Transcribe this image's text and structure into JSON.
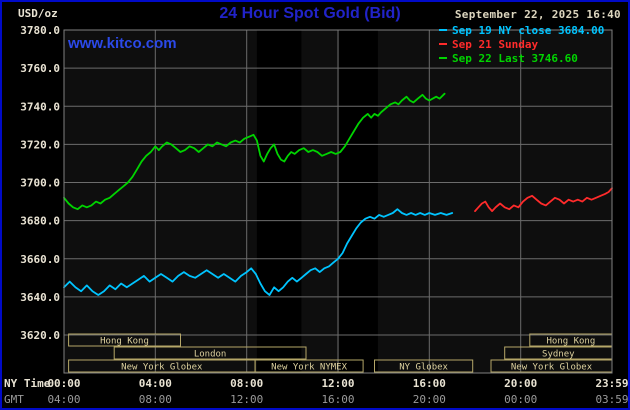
{
  "header": {
    "unit_label": "USD/oz",
    "title": "24 Hour Spot Gold (Bid)",
    "datetime": "September 22, 2025 16:40",
    "watermark": "www.kitco.com"
  },
  "legend": [
    {
      "label": "Sep 19 NY close 3684.00",
      "color": "#00c4ff"
    },
    {
      "label": "Sep 21 Sunday",
      "color": "#ff2b2b"
    },
    {
      "label": "Sep 22 Last 3746.60",
      "color": "#00d400"
    }
  ],
  "axes": {
    "x_label_left_top": "NY Time",
    "x_label_left_bottom": "GMT",
    "y_ticks": [
      "3780.0",
      "3760.0",
      "3740.0",
      "3720.0",
      "3700.0",
      "3680.0",
      "3660.0",
      "3640.0",
      "3620.0"
    ],
    "x_ticks_ny": [
      "00:00",
      "04:00",
      "08:00",
      "12:00",
      "16:00",
      "20:00",
      "23:59"
    ],
    "x_ticks_gmt": [
      "04:00",
      "08:00",
      "12:00",
      "16:00",
      "20:00",
      "00:00",
      "03:59"
    ],
    "x_tick_hours": [
      0,
      4,
      8,
      12,
      16,
      20,
      24
    ]
  },
  "sessions": [
    {
      "row": 1,
      "label": "Hong Kong",
      "start": 0.2,
      "end": 5.1
    },
    {
      "row": 1,
      "label": "Hong Kong",
      "start": 20.4,
      "end": 24
    },
    {
      "row": 2,
      "label": "London",
      "start": 2.2,
      "end": 10.6
    },
    {
      "row": 2,
      "label": "Sydney",
      "start": 19.3,
      "end": 24
    },
    {
      "row": 3,
      "label": "New York Globex",
      "start": 0.2,
      "end": 8.37
    },
    {
      "row": 3,
      "label": "New York NYMEX",
      "start": 8.37,
      "end": 13.1
    },
    {
      "row": 3,
      "label": "NY Globex",
      "start": 13.6,
      "end": 17.9
    },
    {
      "row": 3,
      "label": "New York Globex",
      "start": 18.7,
      "end": 24
    }
  ],
  "chart_data": {
    "type": "line",
    "title": "24 Hour Spot Gold (Bid)",
    "xlabel": "NY Time",
    "ylabel": "USD/oz",
    "ylim": [
      3620,
      3780
    ],
    "xlim_hours": [
      0,
      24
    ],
    "grid": true,
    "legend_position": "top-right",
    "shaded_bands_hours": [
      [
        8.45,
        10.4
      ],
      [
        12.05,
        13.75
      ]
    ],
    "series": [
      {
        "key": "sep19-ny-close",
        "name": "Sep 19 NY close 3684.00",
        "color": "#00c4ff",
        "points": [
          [
            0,
            3645
          ],
          [
            0.25,
            3648
          ],
          [
            0.5,
            3645
          ],
          [
            0.75,
            3643
          ],
          [
            1,
            3646
          ],
          [
            1.25,
            3643
          ],
          [
            1.5,
            3641
          ],
          [
            1.75,
            3643
          ],
          [
            2,
            3646
          ],
          [
            2.25,
            3644
          ],
          [
            2.5,
            3647
          ],
          [
            2.75,
            3645
          ],
          [
            3,
            3647
          ],
          [
            3.25,
            3649
          ],
          [
            3.5,
            3651
          ],
          [
            3.75,
            3648
          ],
          [
            4,
            3650
          ],
          [
            4.25,
            3652
          ],
          [
            4.5,
            3650
          ],
          [
            4.75,
            3648
          ],
          [
            5,
            3651
          ],
          [
            5.25,
            3653
          ],
          [
            5.5,
            3651
          ],
          [
            5.75,
            3650
          ],
          [
            6,
            3652
          ],
          [
            6.25,
            3654
          ],
          [
            6.5,
            3652
          ],
          [
            6.75,
            3650
          ],
          [
            7,
            3652
          ],
          [
            7.25,
            3650
          ],
          [
            7.5,
            3648
          ],
          [
            7.75,
            3651
          ],
          [
            8,
            3653
          ],
          [
            8.2,
            3655
          ],
          [
            8.4,
            3652
          ],
          [
            8.6,
            3647
          ],
          [
            8.8,
            3643
          ],
          [
            9,
            3641
          ],
          [
            9.2,
            3645
          ],
          [
            9.4,
            3643
          ],
          [
            9.6,
            3645
          ],
          [
            9.8,
            3648
          ],
          [
            10,
            3650
          ],
          [
            10.2,
            3648
          ],
          [
            10.4,
            3650
          ],
          [
            10.6,
            3652
          ],
          [
            10.8,
            3654
          ],
          [
            11,
            3655
          ],
          [
            11.2,
            3653
          ],
          [
            11.4,
            3655
          ],
          [
            11.6,
            3656
          ],
          [
            11.8,
            3658
          ],
          [
            12,
            3660
          ],
          [
            12.2,
            3663
          ],
          [
            12.4,
            3668
          ],
          [
            12.6,
            3672
          ],
          [
            12.8,
            3676
          ],
          [
            13,
            3679
          ],
          [
            13.2,
            3681
          ],
          [
            13.4,
            3682
          ],
          [
            13.6,
            3681
          ],
          [
            13.8,
            3683
          ],
          [
            14,
            3682
          ],
          [
            14.2,
            3683
          ],
          [
            14.4,
            3684
          ],
          [
            14.6,
            3686
          ],
          [
            14.8,
            3684
          ],
          [
            15,
            3683
          ],
          [
            15.2,
            3684
          ],
          [
            15.4,
            3683
          ],
          [
            15.6,
            3684
          ],
          [
            15.8,
            3683
          ],
          [
            16,
            3684
          ],
          [
            16.25,
            3683
          ],
          [
            16.5,
            3684
          ],
          [
            16.75,
            3683
          ],
          [
            17,
            3684
          ]
        ]
      },
      {
        "key": "sep21-sunday",
        "name": "Sep 21 Sunday",
        "color": "#ff2b2b",
        "points": [
          [
            18,
            3685
          ],
          [
            18.15,
            3687
          ],
          [
            18.3,
            3689
          ],
          [
            18.45,
            3690
          ],
          [
            18.6,
            3687
          ],
          [
            18.75,
            3685
          ],
          [
            18.9,
            3687
          ],
          [
            19.1,
            3689
          ],
          [
            19.3,
            3687
          ],
          [
            19.5,
            3686
          ],
          [
            19.7,
            3688
          ],
          [
            19.9,
            3687
          ],
          [
            20.1,
            3690
          ],
          [
            20.3,
            3692
          ],
          [
            20.5,
            3693
          ],
          [
            20.7,
            3691
          ],
          [
            20.9,
            3689
          ],
          [
            21.1,
            3688
          ],
          [
            21.3,
            3690
          ],
          [
            21.5,
            3692
          ],
          [
            21.7,
            3691
          ],
          [
            21.9,
            3689
          ],
          [
            22.1,
            3691
          ],
          [
            22.3,
            3690
          ],
          [
            22.5,
            3691
          ],
          [
            22.7,
            3690
          ],
          [
            22.9,
            3692
          ],
          [
            23.1,
            3691
          ],
          [
            23.3,
            3692
          ],
          [
            23.5,
            3693
          ],
          [
            23.7,
            3694
          ],
          [
            23.85,
            3695
          ],
          [
            24,
            3697
          ]
        ]
      },
      {
        "key": "sep22-last",
        "name": "Sep 22 Last 3746.60",
        "color": "#00d400",
        "points": [
          [
            0,
            3692
          ],
          [
            0.2,
            3689
          ],
          [
            0.4,
            3687
          ],
          [
            0.6,
            3686
          ],
          [
            0.8,
            3688
          ],
          [
            1,
            3687
          ],
          [
            1.2,
            3688
          ],
          [
            1.4,
            3690
          ],
          [
            1.6,
            3689
          ],
          [
            1.8,
            3691
          ],
          [
            2,
            3692
          ],
          [
            2.2,
            3694
          ],
          [
            2.4,
            3696
          ],
          [
            2.6,
            3698
          ],
          [
            2.8,
            3700
          ],
          [
            3,
            3703
          ],
          [
            3.2,
            3707
          ],
          [
            3.4,
            3711
          ],
          [
            3.6,
            3714
          ],
          [
            3.8,
            3716
          ],
          [
            4,
            3719
          ],
          [
            4.15,
            3717
          ],
          [
            4.3,
            3719
          ],
          [
            4.5,
            3721
          ],
          [
            4.7,
            3720
          ],
          [
            4.9,
            3718
          ],
          [
            5.1,
            3716
          ],
          [
            5.3,
            3717
          ],
          [
            5.5,
            3719
          ],
          [
            5.7,
            3718
          ],
          [
            5.9,
            3716
          ],
          [
            6.1,
            3718
          ],
          [
            6.3,
            3720
          ],
          [
            6.5,
            3719
          ],
          [
            6.7,
            3721
          ],
          [
            6.9,
            3720
          ],
          [
            7.1,
            3719
          ],
          [
            7.3,
            3721
          ],
          [
            7.5,
            3722
          ],
          [
            7.7,
            3721
          ],
          [
            7.9,
            3723
          ],
          [
            8.1,
            3724
          ],
          [
            8.3,
            3725
          ],
          [
            8.45,
            3722
          ],
          [
            8.6,
            3714
          ],
          [
            8.75,
            3711
          ],
          [
            8.9,
            3715
          ],
          [
            9.05,
            3718
          ],
          [
            9.2,
            3720
          ],
          [
            9.35,
            3715
          ],
          [
            9.5,
            3712
          ],
          [
            9.65,
            3711
          ],
          [
            9.8,
            3714
          ],
          [
            9.95,
            3716
          ],
          [
            10.1,
            3715
          ],
          [
            10.3,
            3717
          ],
          [
            10.5,
            3718
          ],
          [
            10.7,
            3716
          ],
          [
            10.9,
            3717
          ],
          [
            11.1,
            3716
          ],
          [
            11.3,
            3714
          ],
          [
            11.5,
            3715
          ],
          [
            11.7,
            3716
          ],
          [
            11.9,
            3715
          ],
          [
            12.1,
            3716
          ],
          [
            12.3,
            3719
          ],
          [
            12.5,
            3723
          ],
          [
            12.7,
            3727
          ],
          [
            12.9,
            3731
          ],
          [
            13.1,
            3734
          ],
          [
            13.3,
            3736
          ],
          [
            13.45,
            3734
          ],
          [
            13.6,
            3736
          ],
          [
            13.75,
            3735
          ],
          [
            13.9,
            3737
          ],
          [
            14.1,
            3739
          ],
          [
            14.3,
            3741
          ],
          [
            14.5,
            3742
          ],
          [
            14.65,
            3741
          ],
          [
            14.8,
            3743
          ],
          [
            15,
            3745
          ],
          [
            15.15,
            3743
          ],
          [
            15.3,
            3742
          ],
          [
            15.5,
            3744
          ],
          [
            15.7,
            3746
          ],
          [
            15.85,
            3744
          ],
          [
            16,
            3743
          ],
          [
            16.15,
            3744
          ],
          [
            16.3,
            3745
          ],
          [
            16.45,
            3744
          ],
          [
            16.67,
            3746.6
          ]
        ]
      }
    ]
  }
}
